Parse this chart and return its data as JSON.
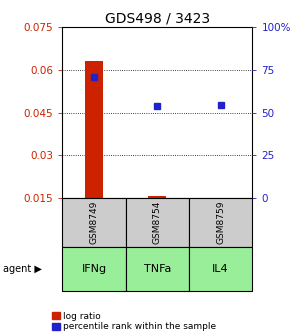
{
  "title": "GDS498 / 3423",
  "samples": [
    "GSM8749",
    "GSM8754",
    "GSM8759"
  ],
  "agents": [
    "IFNg",
    "TNFa",
    "IL4"
  ],
  "log_ratio": [
    0.063,
    0.0158,
    0.0152
  ],
  "percentile_rank": [
    71.0,
    54.0,
    54.5
  ],
  "ylim_left": [
    0.015,
    0.075
  ],
  "ylim_right": [
    0,
    100
  ],
  "yticks_left": [
    0.015,
    0.03,
    0.045,
    0.06,
    0.075
  ],
  "yticks_right": [
    0,
    25,
    50,
    75,
    100
  ],
  "ytick_labels_right": [
    "0",
    "25",
    "50",
    "75",
    "100%"
  ],
  "bar_color": "#cc2200",
  "dot_color": "#2222cc",
  "agent_box_color": "#99ee99",
  "sample_box_color": "#cccccc",
  "title_fontsize": 10,
  "axis_fontsize": 7.5,
  "sample_fontsize": 6.5,
  "agent_fontsize": 8,
  "legend_fontsize": 6.5
}
